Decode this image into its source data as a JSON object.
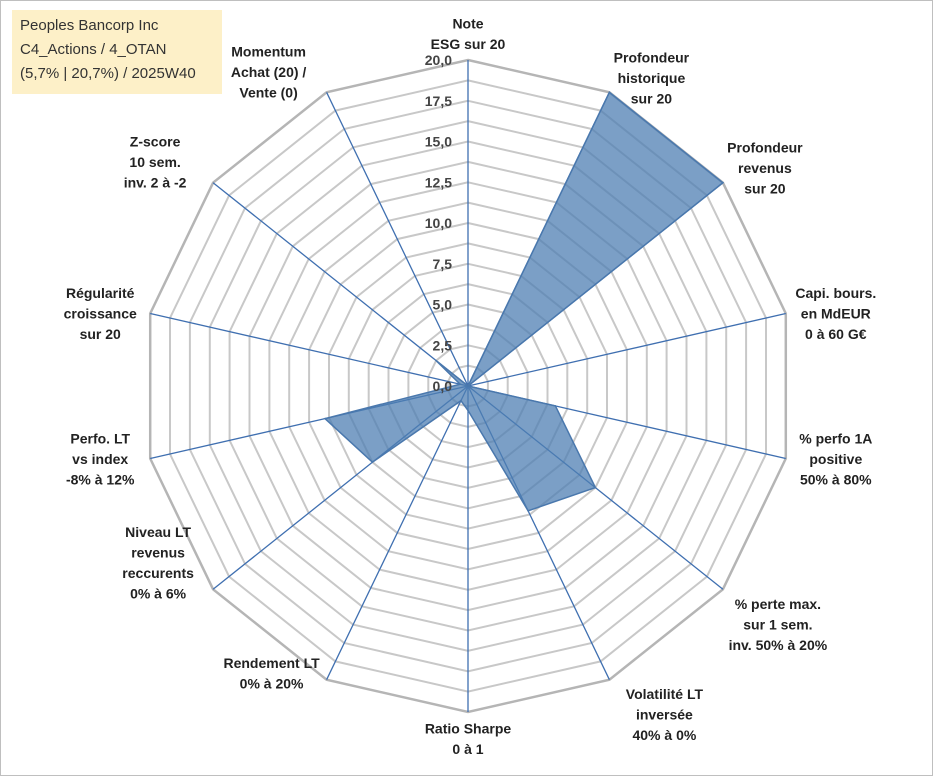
{
  "header": {
    "lines": [
      "Peoples Bancorp Inc",
      "C4_Actions / 4_OTAN",
      "(5,7% | 20,7%) / 2025W40"
    ]
  },
  "colors": {
    "fill": "#4f7fb3",
    "stroke": "#4a78ad",
    "grid": "#c8c8c8",
    "spoke": "#3f6fb0"
  },
  "chart_data": {
    "type": "radar",
    "title": "",
    "rlim": [
      0,
      20
    ],
    "ticks": [
      "0,0",
      "2,5",
      "5,0",
      "7,5",
      "10,0",
      "12,5",
      "15,0",
      "17,5",
      "20,0"
    ],
    "tick_values": [
      0,
      2.5,
      5,
      7.5,
      10,
      12.5,
      15,
      17.5,
      20
    ],
    "grid": true,
    "axes": [
      {
        "label": [
          "Note",
          "ESG sur 20"
        ]
      },
      {
        "label": [
          "Profondeur",
          "historique",
          "sur 20"
        ]
      },
      {
        "label": [
          "Profondeur",
          "revenus",
          "sur 20"
        ]
      },
      {
        "label": [
          "Capi. bours.",
          "en MdEUR",
          "0 à 60 G€"
        ]
      },
      {
        "label": [
          "% perfo 1A",
          "positive",
          "50% à 80%"
        ]
      },
      {
        "label": [
          "% perte max.",
          "sur 1 sem.",
          "inv. 50% à 20%"
        ]
      },
      {
        "label": [
          "Volatilité LT",
          "inversée",
          "40% à 0%"
        ]
      },
      {
        "label": [
          "Ratio Sharpe",
          "0 à 1"
        ]
      },
      {
        "label": [
          "Rendement LT",
          "0% à 20%"
        ]
      },
      {
        "label": [
          "Niveau LT",
          "revenus",
          "reccurents",
          "0% à 6%"
        ]
      },
      {
        "label": [
          "Perfo. LT",
          "vs index",
          "-8% à 12%"
        ]
      },
      {
        "label": [
          "Régularité",
          "croissance",
          "sur 20"
        ]
      },
      {
        "label": [
          "Z-score",
          "10 sem.",
          "inv. 2 à -2"
        ]
      },
      {
        "label": [
          "Momentum",
          "Achat (20) /",
          "Vente (0)"
        ]
      }
    ],
    "series": [
      {
        "values": [
          0,
          20,
          20,
          0,
          5.5,
          10,
          8.5,
          1.5,
          1.0,
          7.5,
          9.0,
          0.5,
          2.5,
          0
        ]
      }
    ]
  }
}
